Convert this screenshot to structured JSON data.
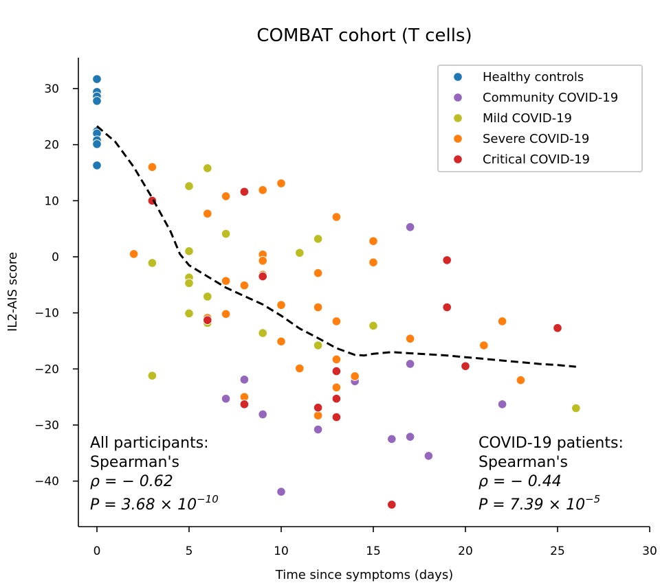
{
  "chart_data": {
    "type": "scatter",
    "title": "COMBAT cohort (T cells)",
    "xlabel": "Time since symptoms (days)",
    "ylabel": "IL2-AIS score",
    "xlim": [
      -1,
      30
    ],
    "ylim": [
      -48,
      35.5
    ],
    "xticks": [
      "0",
      "5",
      "10",
      "15",
      "20",
      "25",
      "30"
    ],
    "yticks": [
      "30",
      "20",
      "10",
      "0",
      "−10",
      "−20",
      "−30",
      "−40"
    ],
    "grid": false,
    "legend_position": "top-right",
    "series": [
      {
        "name": "Healthy controls",
        "color": "#1f77b4",
        "points": [
          [
            0,
            31.7
          ],
          [
            0,
            29.4
          ],
          [
            0,
            28.6
          ],
          [
            0,
            27.8
          ],
          [
            0,
            22.4
          ],
          [
            0,
            22.0
          ],
          [
            0,
            20.8
          ],
          [
            0,
            20.1
          ],
          [
            0,
            16.3
          ]
        ]
      },
      {
        "name": "Community COVID-19",
        "color": "#9467bd",
        "points": [
          [
            17,
            5.3
          ],
          [
            14,
            -22.2
          ],
          [
            17,
            -19.1
          ],
          [
            8,
            -21.9
          ],
          [
            7,
            -25.3
          ],
          [
            9,
            -28.1
          ],
          [
            12,
            -30.8
          ],
          [
            22,
            -26.3
          ],
          [
            16,
            -32.5
          ],
          [
            17,
            -32.1
          ],
          [
            18,
            -35.5
          ],
          [
            10,
            -41.9
          ]
        ]
      },
      {
        "name": "Mild COVID-19",
        "color": "#bcbd22",
        "points": [
          [
            6,
            15.8
          ],
          [
            5,
            12.6
          ],
          [
            7,
            4.1
          ],
          [
            12,
            3.2
          ],
          [
            11,
            0.7
          ],
          [
            5,
            1.0
          ],
          [
            3,
            -1.1
          ],
          [
            5,
            -3.7
          ],
          [
            5,
            -4.7
          ],
          [
            6,
            -7.1
          ],
          [
            5,
            -10.1
          ],
          [
            6,
            -11.8
          ],
          [
            9,
            -13.6
          ],
          [
            12,
            -15.8
          ],
          [
            15,
            -12.3
          ],
          [
            3,
            -21.2
          ],
          [
            26,
            -27.0
          ]
        ]
      },
      {
        "name": "Severe COVID-19",
        "color": "#ff7f0e",
        "points": [
          [
            3,
            16.0
          ],
          [
            10,
            13.1
          ],
          [
            9,
            11.9
          ],
          [
            7,
            10.8
          ],
          [
            6,
            7.7
          ],
          [
            13,
            7.1
          ],
          [
            2,
            0.5
          ],
          [
            9,
            0.4
          ],
          [
            9,
            -0.7
          ],
          [
            15,
            2.8
          ],
          [
            15,
            -1.0
          ],
          [
            12,
            -2.9
          ],
          [
            9,
            -3.2
          ],
          [
            7,
            -4.3
          ],
          [
            8,
            -5.1
          ],
          [
            10,
            -8.6
          ],
          [
            12,
            -9.0
          ],
          [
            6,
            -10.9
          ],
          [
            7,
            -10.2
          ],
          [
            13,
            -11.5
          ],
          [
            10,
            -15.1
          ],
          [
            17,
            -14.6
          ],
          [
            21,
            -15.8
          ],
          [
            22,
            -11.5
          ],
          [
            13,
            -18.3
          ],
          [
            11,
            -19.9
          ],
          [
            14,
            -21.3
          ],
          [
            13,
            -23.3
          ],
          [
            8,
            -25.0
          ],
          [
            12,
            -28.3
          ],
          [
            23,
            -22.0
          ]
        ]
      },
      {
        "name": "Critical COVID-19",
        "color": "#d62728",
        "points": [
          [
            3,
            10.0
          ],
          [
            8,
            11.6
          ],
          [
            9,
            -3.5
          ],
          [
            6,
            -11.3
          ],
          [
            19,
            -0.6
          ],
          [
            19,
            -9.0
          ],
          [
            13,
            -20.4
          ],
          [
            20,
            -19.5
          ],
          [
            25,
            -12.7
          ],
          [
            13,
            -25.3
          ],
          [
            12,
            -26.9
          ],
          [
            8,
            -26.3
          ],
          [
            13,
            -28.6
          ],
          [
            16,
            -44.2
          ]
        ]
      }
    ],
    "trend_line": {
      "style": "dashed",
      "color": "#000000",
      "points": [
        [
          0,
          23.3
        ],
        [
          1,
          20.5
        ],
        [
          2,
          16.0
        ],
        [
          3,
          10.5
        ],
        [
          4,
          4.5
        ],
        [
          4.5,
          0.5
        ],
        [
          5,
          -1.5
        ],
        [
          6,
          -3.5
        ],
        [
          7,
          -5.5
        ],
        [
          8,
          -7.0
        ],
        [
          9,
          -8.5
        ],
        [
          10,
          -10.5
        ],
        [
          11,
          -12.8
        ],
        [
          12,
          -14.5
        ],
        [
          13,
          -16.3
        ],
        [
          14,
          -17.5
        ],
        [
          14.5,
          -17.6
        ],
        [
          15,
          -17.3
        ],
        [
          16,
          -17.0
        ],
        [
          17,
          -17.2
        ],
        [
          18,
          -17.4
        ],
        [
          19,
          -17.6
        ],
        [
          20,
          -17.9
        ],
        [
          21,
          -18.2
        ],
        [
          22,
          -18.5
        ],
        [
          23,
          -18.8
        ],
        [
          24,
          -19.1
        ],
        [
          25,
          -19.3
        ],
        [
          26,
          -19.6
        ]
      ]
    },
    "annotations": {
      "left": {
        "line1": "All participants:",
        "line2": "Spearman's",
        "rho_label": "ρ = − 0.62",
        "p_prefix": "P = 3.68 × 10",
        "p_exp": "−10"
      },
      "right": {
        "line1": "COVID-19 patients:",
        "line2": "Spearman's",
        "rho_label": "ρ = − 0.44",
        "p_prefix": "P = 7.39 × 10",
        "p_exp": "−5"
      }
    }
  }
}
